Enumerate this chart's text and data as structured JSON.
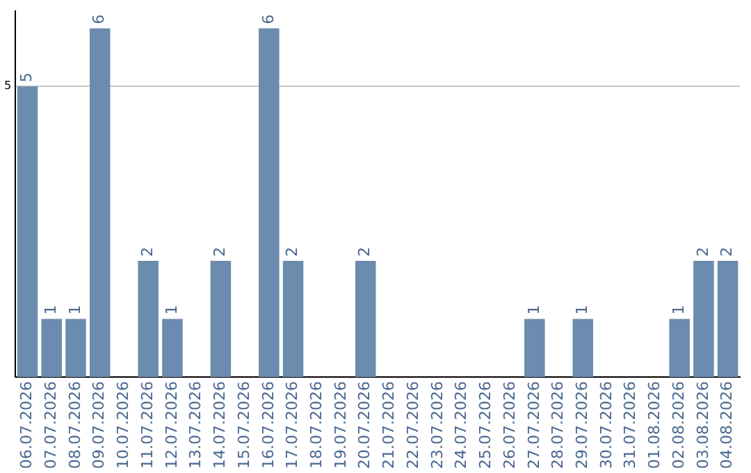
{
  "chart_data": {
    "type": "bar",
    "categories": [
      "06.07.2026",
      "07.07.2026",
      "08.07.2026",
      "09.07.2026",
      "10.07.2026",
      "11.07.2026",
      "12.07.2026",
      "13.07.2026",
      "14.07.2026",
      "15.07.2026",
      "16.07.2026",
      "17.07.2026",
      "18.07.2026",
      "19.07.2026",
      "20.07.2026",
      "21.07.2026",
      "22.07.2026",
      "23.07.2026",
      "24.07.2026",
      "25.07.2026",
      "26.07.2026",
      "27.07.2026",
      "28.07.2026",
      "29.07.2026",
      "30.07.2026",
      "31.07.2026",
      "01.08.2026",
      "02.08.2026",
      "03.08.2026",
      "04.08.2026"
    ],
    "values": [
      5,
      1,
      1,
      6,
      0,
      2,
      1,
      0,
      2,
      0,
      6,
      2,
      0,
      0,
      2,
      0,
      0,
      0,
      0,
      0,
      0,
      1,
      0,
      1,
      0,
      0,
      0,
      1,
      2,
      2
    ],
    "value_labels": [
      "5",
      "1",
      "1",
      "6",
      null,
      "2",
      "1",
      null,
      "2",
      null,
      "6",
      "2",
      null,
      null,
      "2",
      null,
      null,
      null,
      null,
      null,
      null,
      "1",
      null,
      "1",
      null,
      null,
      null,
      "1",
      "2",
      "2"
    ],
    "color": "#6b8cae",
    "ylim": [
      0,
      6.3
    ],
    "yticks": [
      5
    ],
    "grid": "y"
  }
}
